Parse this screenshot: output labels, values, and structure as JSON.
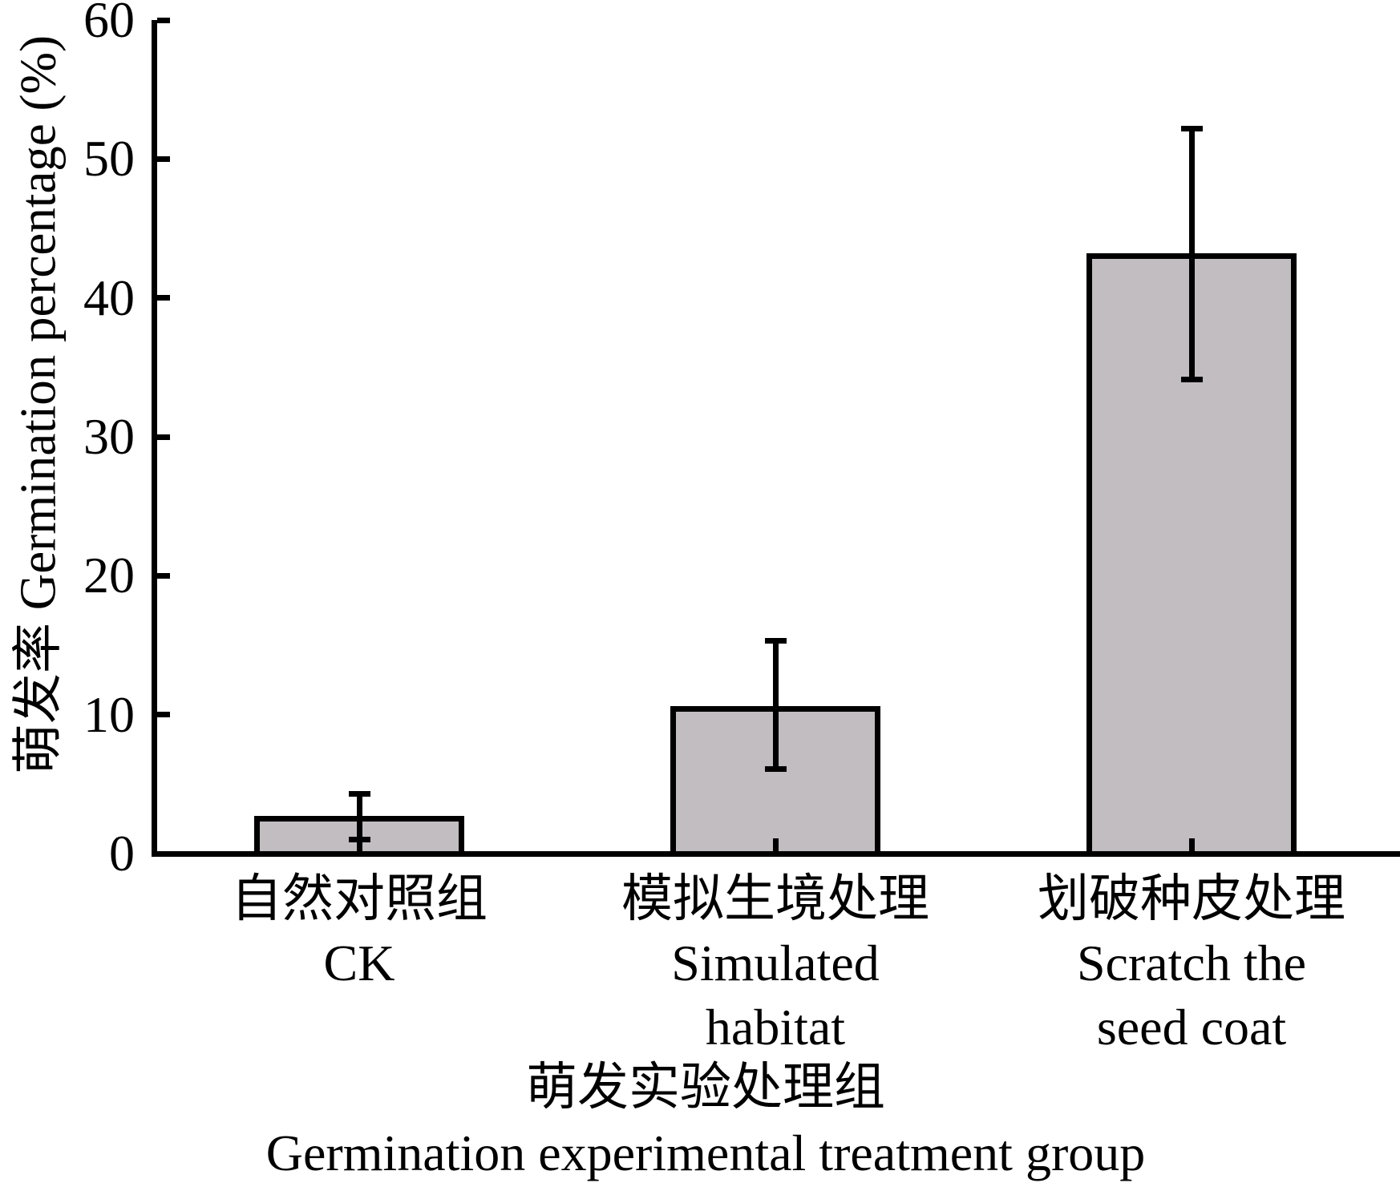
{
  "figure": {
    "background_color": "#ffffff",
    "text_color": "#000000"
  },
  "chart_data": {
    "type": "bar",
    "title": "",
    "categories": [
      {
        "label_zh": "自然对照组",
        "label_en_lines": [
          "CK"
        ]
      },
      {
        "label_zh": "模拟生境处理",
        "label_en_lines": [
          "Simulated",
          "habitat"
        ]
      },
      {
        "label_zh": "划破种皮处理",
        "label_en_lines": [
          "Scratch the",
          "seed coat"
        ]
      }
    ],
    "values": [
      2.7,
      10.6,
      43.2
    ],
    "error_upper": [
      4.3,
      15.3,
      52.2
    ],
    "error_lower": [
      1.0,
      6.1,
      34.1
    ],
    "ylabel": "萌发率 Germination percentage (%)",
    "xlabel_zh": "萌发实验处理组",
    "xlabel_en": "Germination experimental treatment group",
    "ylim": [
      0,
      60
    ],
    "yticks": [
      0,
      10,
      20,
      30,
      40,
      50,
      60
    ],
    "grid": false,
    "tick_direction": "in",
    "bar_fill": "#c1bdc1",
    "bar_edge": "#000000",
    "axis_color": "#000000"
  }
}
